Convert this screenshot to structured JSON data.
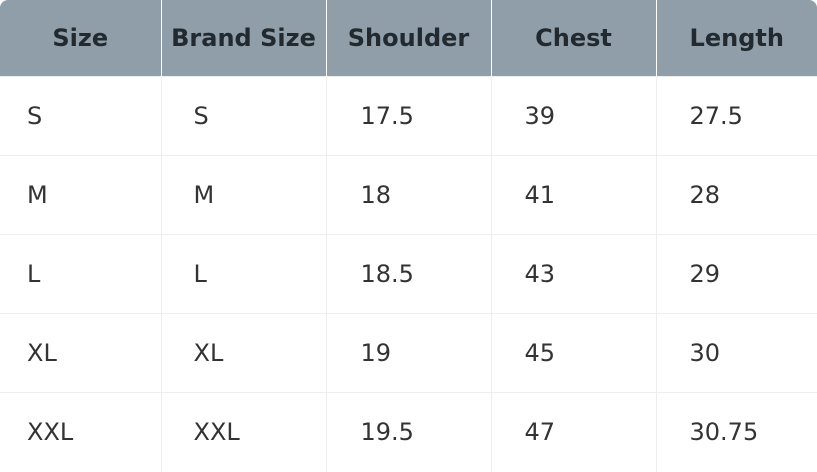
{
  "table": {
    "headers": [
      "Size",
      "Brand Size",
      "Shoulder",
      "Chest",
      "Length"
    ],
    "rows": [
      [
        "S",
        "S",
        "17.5",
        "39",
        "27.5"
      ],
      [
        "M",
        "M",
        "18",
        "41",
        "28"
      ],
      [
        "L",
        "L",
        "18.5",
        "43",
        "29"
      ],
      [
        "XL",
        "XL",
        "19",
        "45",
        "30"
      ],
      [
        "XXL",
        "XXL",
        "19.5",
        "47",
        "30.75"
      ]
    ]
  },
  "colors": {
    "header_background": "#8f9ea8",
    "header_text": "#222a30",
    "body_text": "#333333",
    "grid_line": "#eeeeee"
  }
}
